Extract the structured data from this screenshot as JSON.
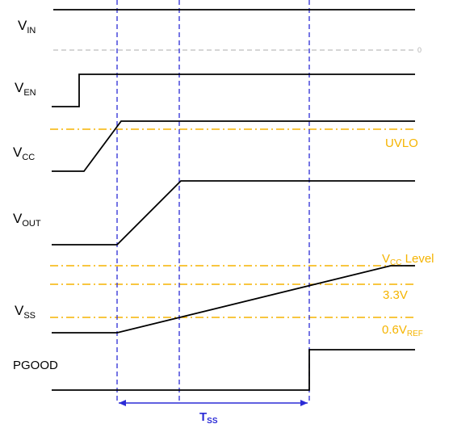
{
  "signals": {
    "vin": {
      "main": "V",
      "sub": "IN"
    },
    "ven": {
      "main": "V",
      "sub": "EN"
    },
    "vcc": {
      "main": "V",
      "sub": "CC"
    },
    "vout": {
      "main": "V",
      "sub": "OUT"
    },
    "vss": {
      "main": "V",
      "sub": "SS"
    },
    "pgood": {
      "main": "PGOOD"
    }
  },
  "levels": {
    "zero": "0",
    "uvlo": "UVLO",
    "vcc_level": {
      "main": "V",
      "sub": "CC",
      "rest": " Level"
    },
    "v33": "3.3V",
    "v06": {
      "main": "0.6V",
      "sub": "REF"
    }
  },
  "timing": {
    "main": "T",
    "sub": "SS"
  },
  "colors": {
    "trace": "#000000",
    "threshold": "#f5b400",
    "marker": "#2b2bd6",
    "zero_line": "#c8c8c8"
  }
}
